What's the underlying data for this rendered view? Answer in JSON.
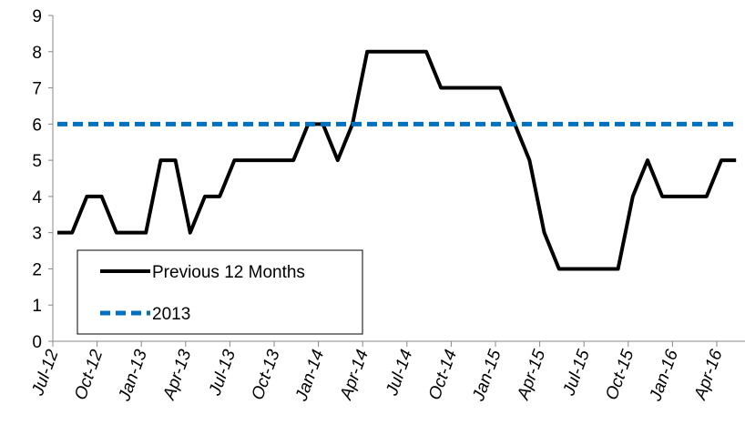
{
  "chart_data": {
    "type": "line",
    "categories": [
      "Jul-12",
      null,
      null,
      "Oct-12",
      null,
      null,
      "Jan-13",
      null,
      null,
      "Apr-13",
      null,
      null,
      "Jul-13",
      null,
      null,
      "Oct-13",
      null,
      null,
      "Jan-14",
      null,
      null,
      "Apr-14",
      null,
      null,
      "Jul-14",
      null,
      null,
      "Oct-14",
      null,
      null,
      "Jan-15",
      null,
      null,
      "Apr-15",
      null,
      null,
      "Jul-15",
      null,
      null,
      "Oct-15",
      null,
      null,
      "Jan-16",
      null,
      null,
      "Apr-16",
      null
    ],
    "series": [
      {
        "name": "Previous 12 Months",
        "color": "#000000",
        "dash": false,
        "values": [
          3,
          3,
          4,
          4,
          3,
          3,
          3,
          5,
          5,
          3,
          4,
          4,
          5,
          5,
          5,
          5,
          5,
          6,
          6,
          5,
          6,
          8,
          8,
          8,
          8,
          8,
          7,
          7,
          7,
          7,
          7,
          6,
          5,
          3,
          2,
          2,
          2,
          2,
          2,
          4,
          5,
          4,
          4,
          4,
          4,
          5,
          5
        ]
      },
      {
        "name": "2013",
        "color": "#0070c0",
        "dash": true,
        "values": [
          6,
          6,
          6,
          6,
          6,
          6,
          6,
          6,
          6,
          6,
          6,
          6,
          6,
          6,
          6,
          6,
          6,
          6,
          6,
          6,
          6,
          6,
          6,
          6,
          6,
          6,
          6,
          6,
          6,
          6,
          6,
          6,
          6,
          6,
          6,
          6,
          6,
          6,
          6,
          6,
          6,
          6,
          6,
          6,
          6,
          6,
          6
        ]
      }
    ],
    "ylim": [
      0,
      9
    ],
    "yticks": [
      0,
      1,
      2,
      3,
      4,
      5,
      6,
      7,
      8,
      9
    ],
    "legend": "lower left"
  }
}
